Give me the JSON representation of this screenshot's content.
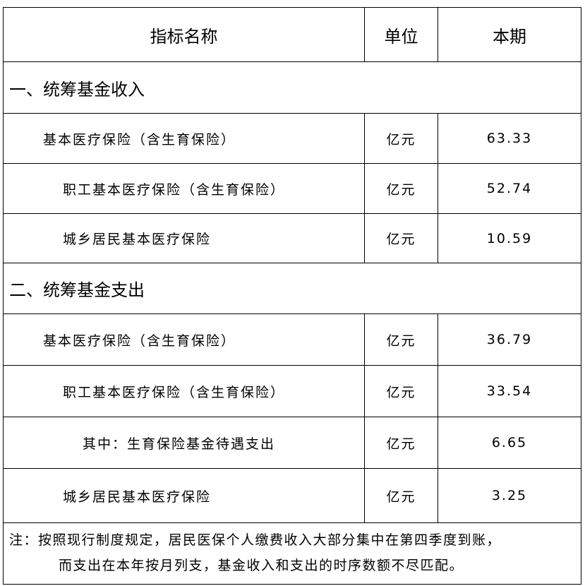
{
  "header": {
    "name": "指标名称",
    "unit": "单位",
    "value": "本期"
  },
  "sections": [
    {
      "title": "一、统筹基金收入",
      "rows": [
        {
          "name": "基本医疗保险（含生育保险）",
          "level": 1,
          "unit": "亿元",
          "value": "63.33"
        },
        {
          "name": "职工基本医疗保险（含生育保险）",
          "level": 2,
          "unit": "亿元",
          "value": "52.74"
        },
        {
          "name": "城乡居民基本医疗保险",
          "level": 2,
          "unit": "亿元",
          "value": "10.59"
        }
      ]
    },
    {
      "title": "二、统筹基金支出",
      "rows": [
        {
          "name": "基本医疗保险（含生育保险）",
          "level": 1,
          "unit": "亿元",
          "value": "36.79"
        },
        {
          "name": "职工基本医疗保险（含生育保险）",
          "level": 2,
          "unit": "亿元",
          "value": "33.54"
        },
        {
          "name": "其中：生育保险基金待遇支出",
          "level": 3,
          "unit": "亿元",
          "value": "6.65"
        },
        {
          "name": "城乡居民基本医疗保险",
          "level": 2,
          "unit": "亿元",
          "value": "3.25"
        }
      ]
    }
  ],
  "note": {
    "line1": "注：按照现行制度规定，居民医保个人缴费收入大部分集中在第四季度到账，",
    "line2": "而支出在本年按月列支，基金收入和支出的时序数额不尽匹配。"
  }
}
